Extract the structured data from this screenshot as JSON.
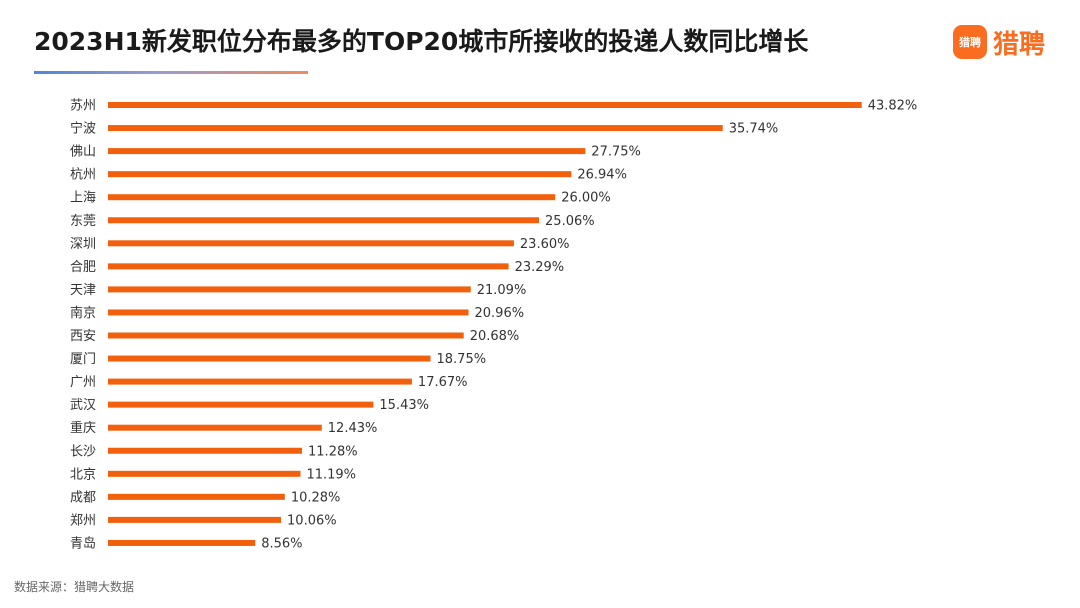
{
  "header": {
    "title": "2023H1新发职位分布最多的TOP20城市所接收的投递人数同比增长"
  },
  "logo": {
    "badge_text": "猎聘",
    "name": "猎聘",
    "icon": "liepin-logo-icon",
    "brand_color": "#fa6c1f"
  },
  "colors": {
    "bar": "#f2600d",
    "label_text": "#333333",
    "accent_blue": "#4f86d8"
  },
  "chart_data": {
    "type": "bar",
    "orientation": "horizontal",
    "title": "2023H1新发职位分布最多的TOP20城市所接收的投递人数同比增长",
    "categories": [
      "苏州",
      "宁波",
      "佛山",
      "杭州",
      "上海",
      "东莞",
      "深圳",
      "合肥",
      "天津",
      "南京",
      "西安",
      "厦门",
      "广州",
      "武汉",
      "重庆",
      "长沙",
      "北京",
      "成都",
      "郑州",
      "青岛"
    ],
    "values": [
      43.82,
      35.74,
      27.75,
      26.94,
      26.0,
      25.06,
      23.6,
      23.29,
      21.09,
      20.96,
      20.68,
      18.75,
      17.67,
      15.43,
      12.43,
      11.28,
      11.19,
      10.28,
      10.06,
      8.56
    ],
    "value_labels": [
      "43.82%",
      "35.74%",
      "27.75%",
      "26.94%",
      "26.00%",
      "25.06%",
      "23.60%",
      "23.29%",
      "21.09%",
      "20.96%",
      "20.68%",
      "18.75%",
      "17.67%",
      "15.43%",
      "12.43%",
      "11.28%",
      "11.19%",
      "10.28%",
      "10.06%",
      "8.56%"
    ],
    "unit": "%",
    "xlim": [
      0,
      45
    ],
    "grid": false,
    "legend": "none"
  },
  "footer": {
    "source": "数据来源：猎聘大数据"
  }
}
